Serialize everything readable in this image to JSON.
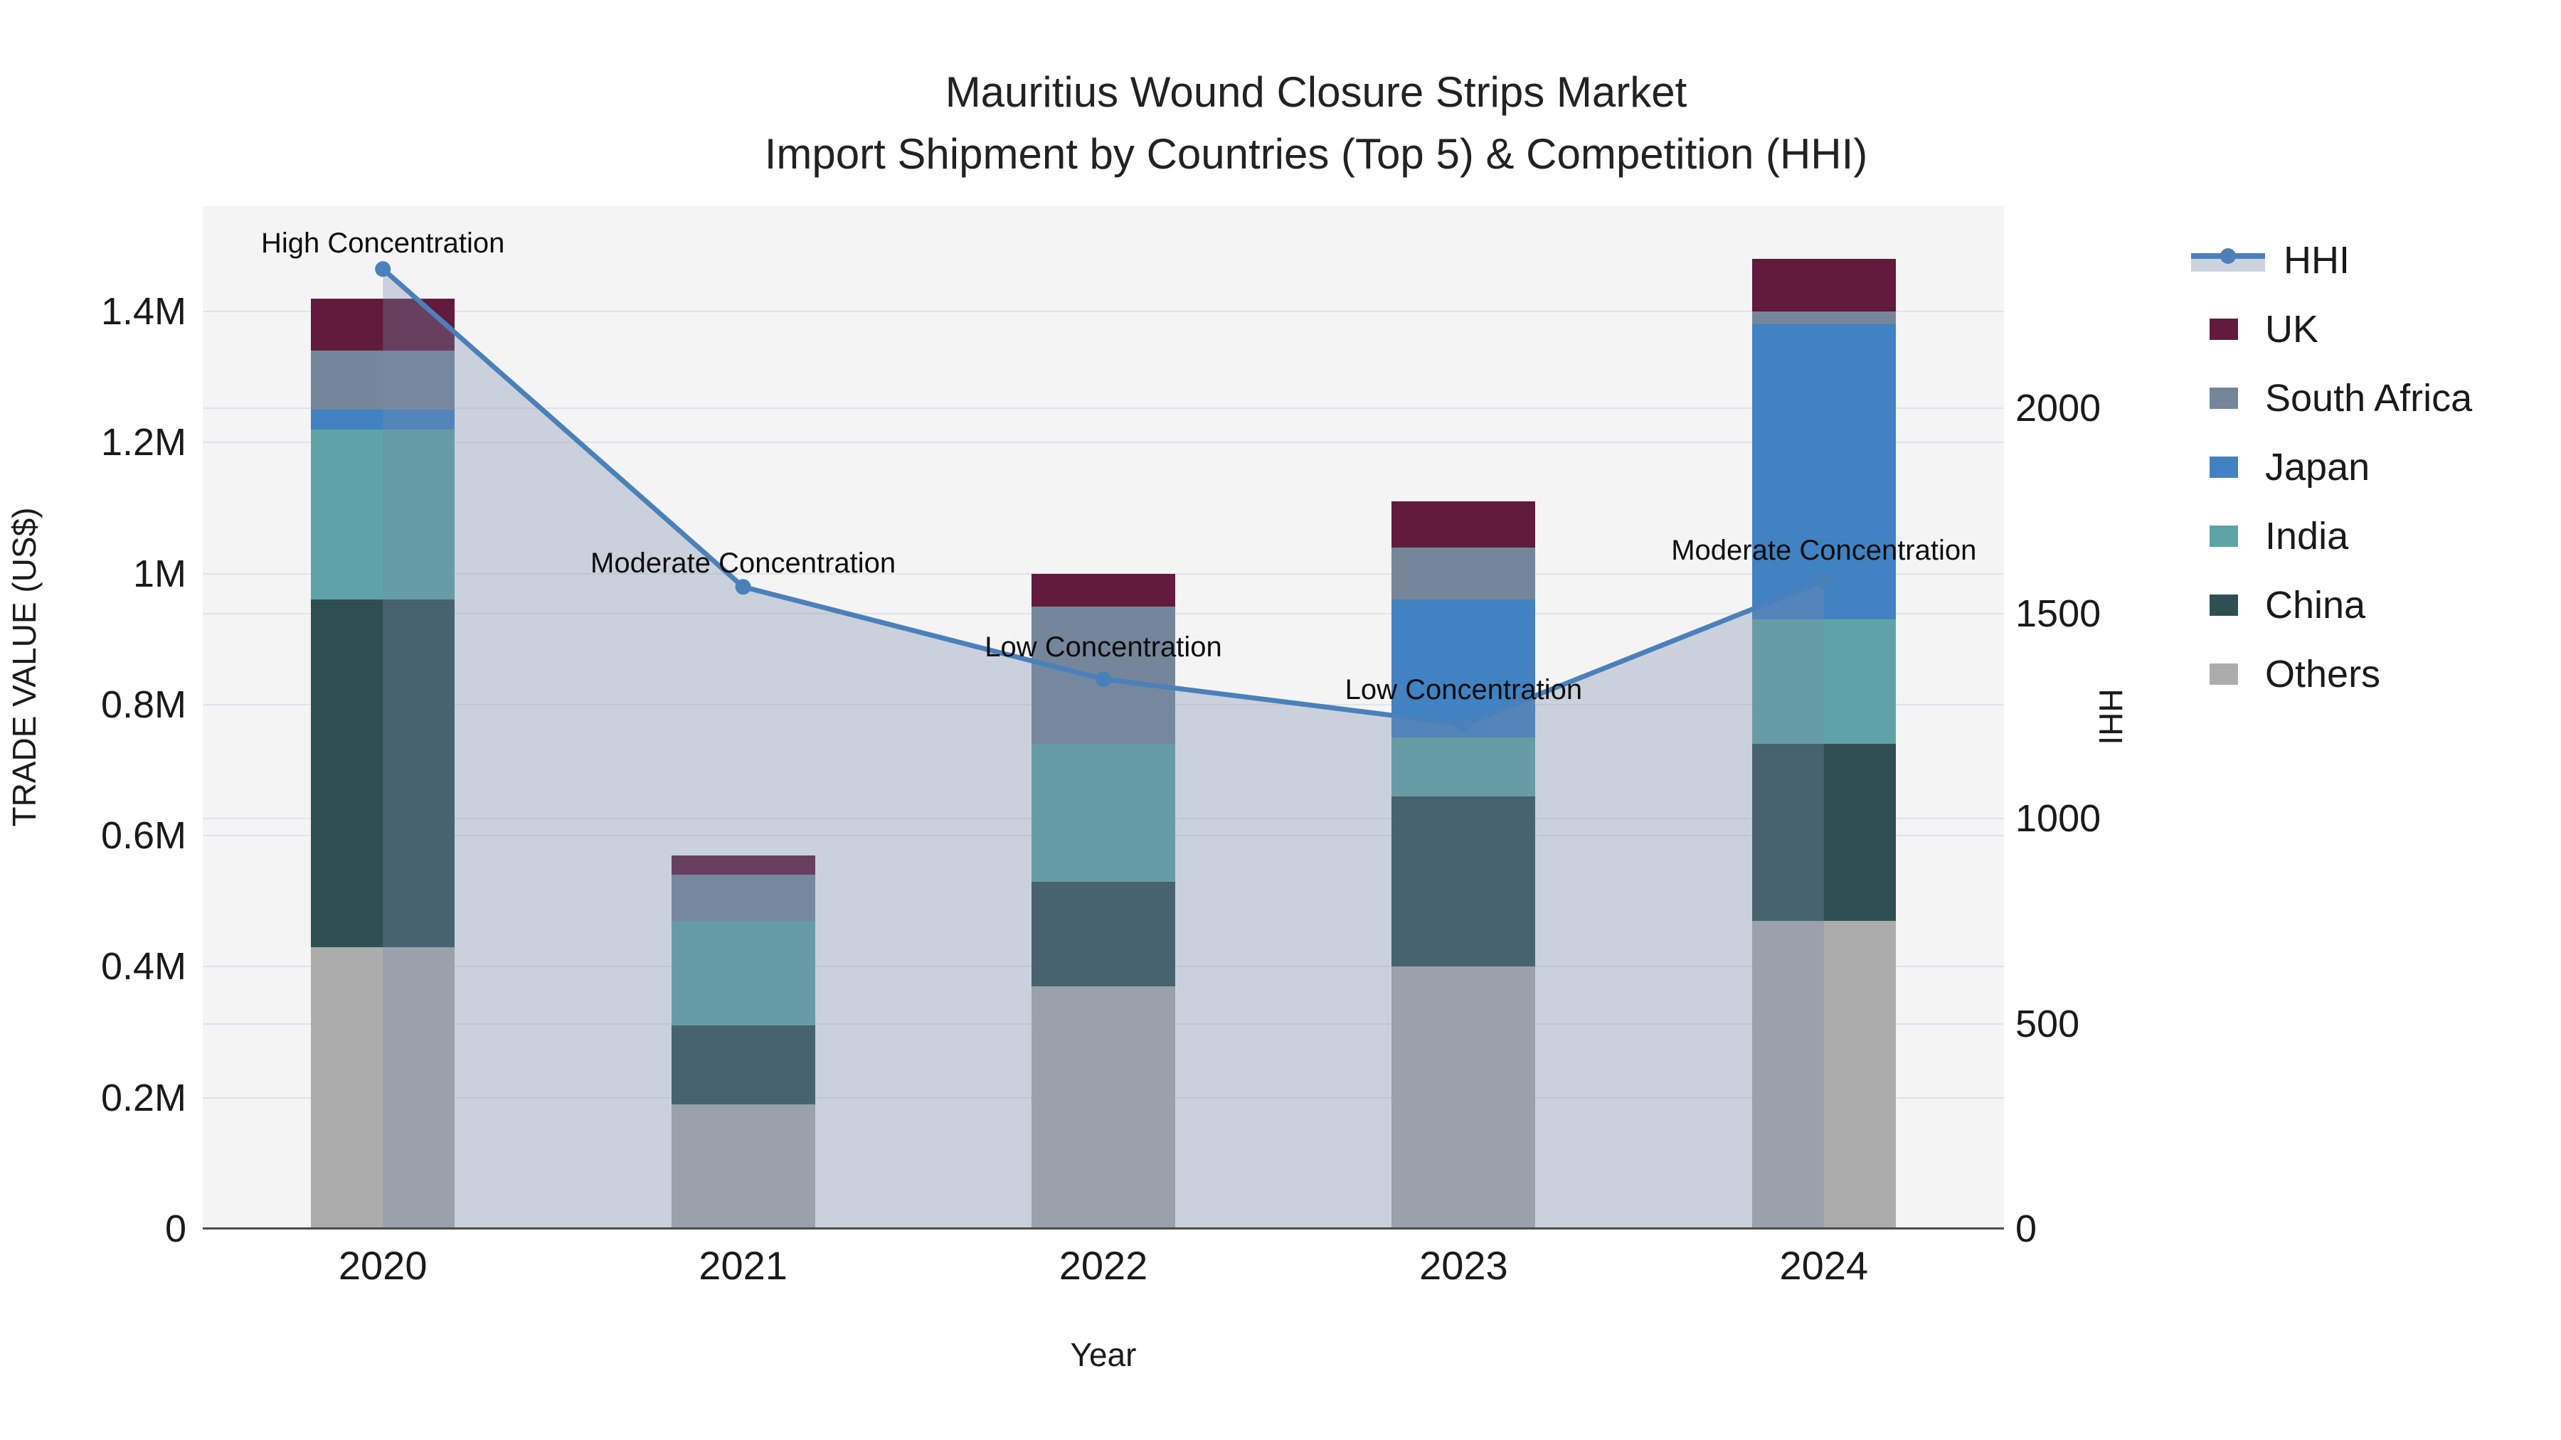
{
  "title": {
    "line1": "Mauritius Wound Closure Strips Market",
    "line2": "Import Shipment by Countries (Top 5) & Competition (HHI)"
  },
  "x_axis": {
    "label": "Year",
    "categories": [
      "2020",
      "2021",
      "2022",
      "2023",
      "2024"
    ]
  },
  "y_left": {
    "label": "TRADE VALUE (US$)",
    "ticks": [
      {
        "label": "0",
        "value": 0
      },
      {
        "label": "0.2M",
        "value": 0.2
      },
      {
        "label": "0.4M",
        "value": 0.4
      },
      {
        "label": "0.6M",
        "value": 0.6
      },
      {
        "label": "0.8M",
        "value": 0.8
      },
      {
        "label": "1M",
        "value": 1
      },
      {
        "label": "1.2M",
        "value": 1.2
      },
      {
        "label": "1.4M",
        "value": 1.4
      }
    ]
  },
  "y_right": {
    "label": "HHI",
    "ticks": [
      {
        "label": "0",
        "value": 0
      },
      {
        "label": "500",
        "value": 500
      },
      {
        "label": "1000",
        "value": 1000
      },
      {
        "label": "1500",
        "value": 1500
      },
      {
        "label": "2000",
        "value": 2000
      }
    ]
  },
  "legend": {
    "items": [
      {
        "label": "HHI",
        "type": "line",
        "color": "#4a81ba"
      },
      {
        "label": "UK",
        "type": "swatch",
        "color": "#621a3d"
      },
      {
        "label": "South Africa",
        "type": "swatch",
        "color": "#75869a"
      },
      {
        "label": "Japan",
        "type": "swatch",
        "color": "#4182c2"
      },
      {
        "label": "India",
        "type": "swatch",
        "color": "#5ea4a6"
      },
      {
        "label": "China",
        "type": "swatch",
        "color": "#2f5053"
      },
      {
        "label": "Others",
        "type": "swatch",
        "color": "#abacab"
      }
    ]
  },
  "chart_data": {
    "type": "combo-stacked-bar-line",
    "title": "Mauritius Wound Closure Strips Market\nImport Shipment by Countries (Top 5) & Competition (HHI)",
    "xlabel": "Year",
    "ylabel_left": "TRADE VALUE (US$)",
    "ylabel_right": "HHI",
    "categories": [
      "2020",
      "2021",
      "2022",
      "2023",
      "2024"
    ],
    "bar_value_unit": "million US$",
    "series": [
      {
        "name": "Others",
        "color": "#abacab",
        "values": [
          0.43,
          0.19,
          0.37,
          0.4,
          0.47
        ]
      },
      {
        "name": "China",
        "color": "#2f5053",
        "values": [
          0.53,
          0.12,
          0.16,
          0.26,
          0.27
        ]
      },
      {
        "name": "India",
        "color": "#5ea4a6",
        "values": [
          0.26,
          0.16,
          0.21,
          0.09,
          0.19
        ]
      },
      {
        "name": "Japan",
        "color": "#4182c2",
        "values": [
          0.03,
          0,
          0,
          0.21,
          0.45
        ]
      },
      {
        "name": "South Africa",
        "color": "#75869a",
        "values": [
          0.09,
          0.07,
          0.21,
          0.08,
          0.02
        ]
      },
      {
        "name": "UK",
        "color": "#621a3d",
        "values": [
          0.08,
          0.03,
          0.05,
          0.07,
          0.08
        ]
      }
    ],
    "bar_totals": [
      1.42,
      0.57,
      1.0,
      1.11,
      1.48
    ],
    "line_series": {
      "name": "HHI",
      "color": "#4a81ba",
      "area_fill_color": "rgba(120,140,170,0.33)",
      "values": [
        2340,
        1565,
        1340,
        1230,
        1580
      ]
    },
    "annotations": [
      {
        "text": "High Concentration",
        "category": "2020",
        "y_hhi": 2400
      },
      {
        "text": "Moderate Concentration",
        "category": "2021",
        "y_hhi": 1620
      },
      {
        "text": "Low Concentration",
        "category": "2022",
        "y_hhi": 1415
      },
      {
        "text": "Low Concentration",
        "category": "2023",
        "y_hhi": 1310
      },
      {
        "text": "Moderate Concentration",
        "category": "2024",
        "y_hhi": 1650
      }
    ],
    "ylim_left": [
      0,
      1.565
    ],
    "ylim_right": [
      0,
      2500
    ],
    "grid": true,
    "legend_position": "right",
    "stack_order_bottom_to_top": [
      "Others",
      "China",
      "India",
      "Japan",
      "South Africa",
      "UK"
    ]
  }
}
